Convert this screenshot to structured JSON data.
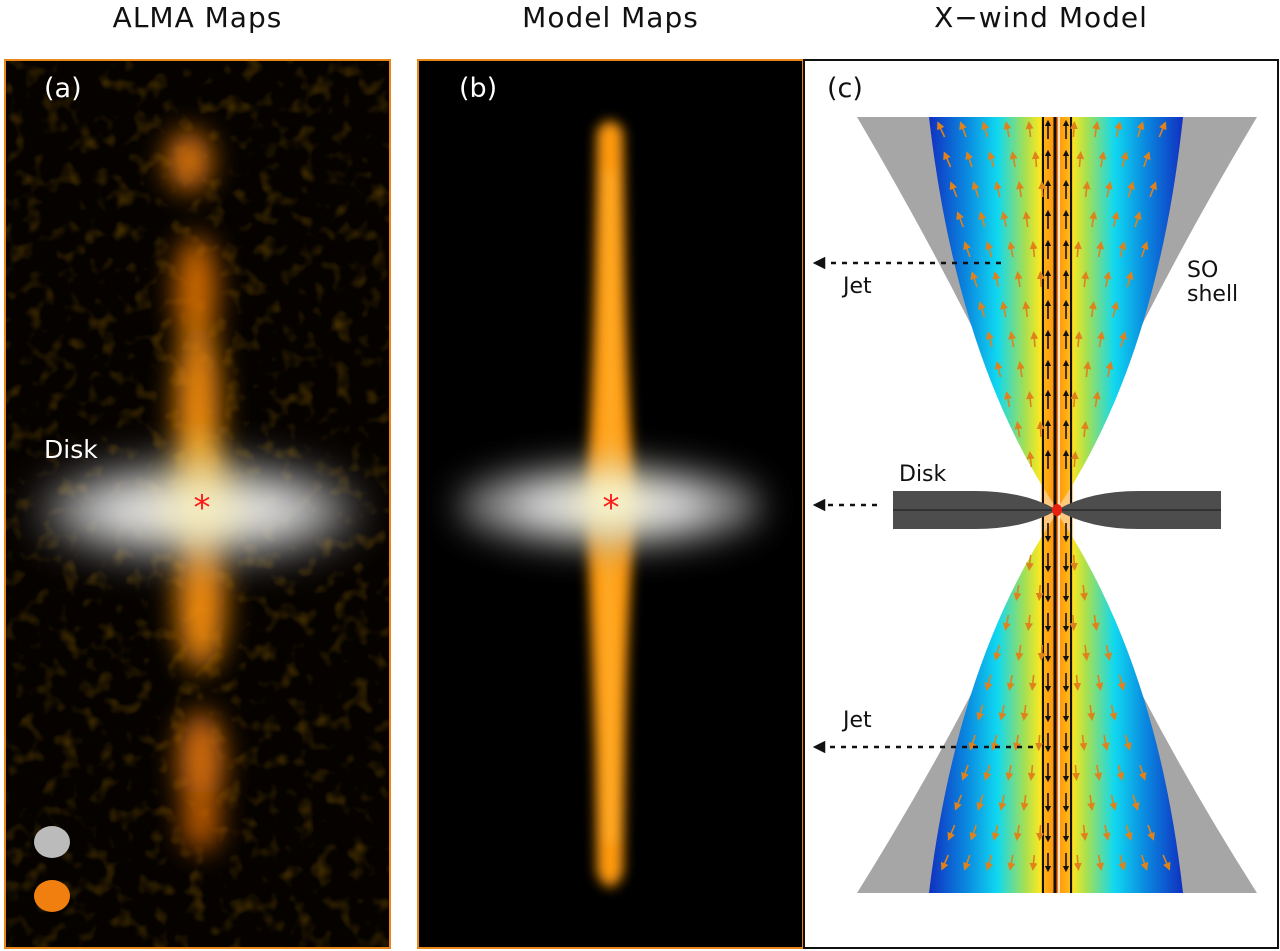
{
  "titles": {
    "alma": "ALMA Maps",
    "model": "Model Maps",
    "xwind": "X−wind Model"
  },
  "panels": {
    "a": {
      "label": "(a)",
      "disk_label": "Disk",
      "beams": [
        "#bbbbbb",
        "#f07f10"
      ]
    },
    "b": {
      "label": "(b)"
    },
    "c": {
      "label": "(c)",
      "jet_top": "Jet",
      "jet_bottom": "Jet",
      "shell_line1": "SO",
      "shell_line2": "shell",
      "disk": "Disk"
    }
  },
  "colors": {
    "frame_orange": "#e8881a",
    "jet_orange": "#ff9a10",
    "star_red": "#ff1a1a",
    "shell_gray": "#a6a6a6",
    "disk_dark": "#4d4d4d"
  }
}
